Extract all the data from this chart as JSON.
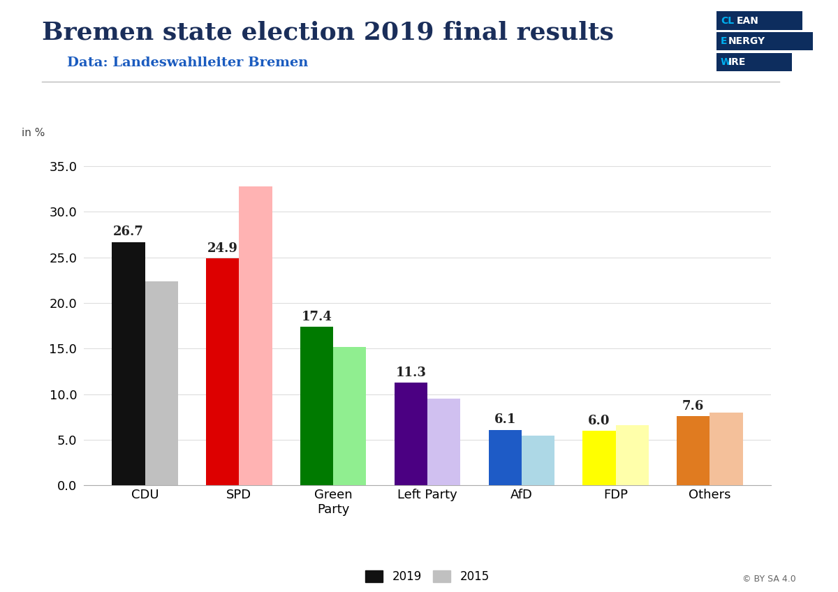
{
  "title": "Bremen state election 2019 final results",
  "subtitle": "Data: Landeswahlleiter Bremen",
  "categories": [
    "CDU",
    "SPD",
    "Green\nParty",
    "Left Party",
    "AfD",
    "FDP",
    "Others"
  ],
  "values_2019": [
    26.7,
    24.9,
    17.4,
    11.3,
    6.1,
    6.0,
    7.6
  ],
  "values_2015": [
    22.4,
    32.8,
    15.2,
    9.5,
    5.5,
    6.6,
    8.0
  ],
  "colors_2019": [
    "#111111",
    "#dd0000",
    "#007a00",
    "#4b0082",
    "#1e5bc6",
    "#ffff00",
    "#e07b20"
  ],
  "colors_2015": [
    "#c0c0c0",
    "#ffb3b3",
    "#90ee90",
    "#d0c0f0",
    "#add8e6",
    "#ffffaa",
    "#f4c09a"
  ],
  "bar_width": 0.35,
  "ylim": [
    0,
    37
  ],
  "yticks": [
    0.0,
    5.0,
    10.0,
    15.0,
    20.0,
    25.0,
    30.0,
    35.0
  ],
  "ylabel": "in %",
  "legend_labels": [
    "2019",
    "2015"
  ],
  "background_color": "#ffffff",
  "title_color": "#1a2e5a",
  "subtitle_color": "#1a5bbf",
  "title_fontsize": 26,
  "subtitle_fontsize": 14,
  "label_fontsize": 13,
  "tick_fontsize": 13,
  "value_fontsize": 13,
  "clew_bg": "#0d2d5e",
  "clew_accent": "#00aeef"
}
